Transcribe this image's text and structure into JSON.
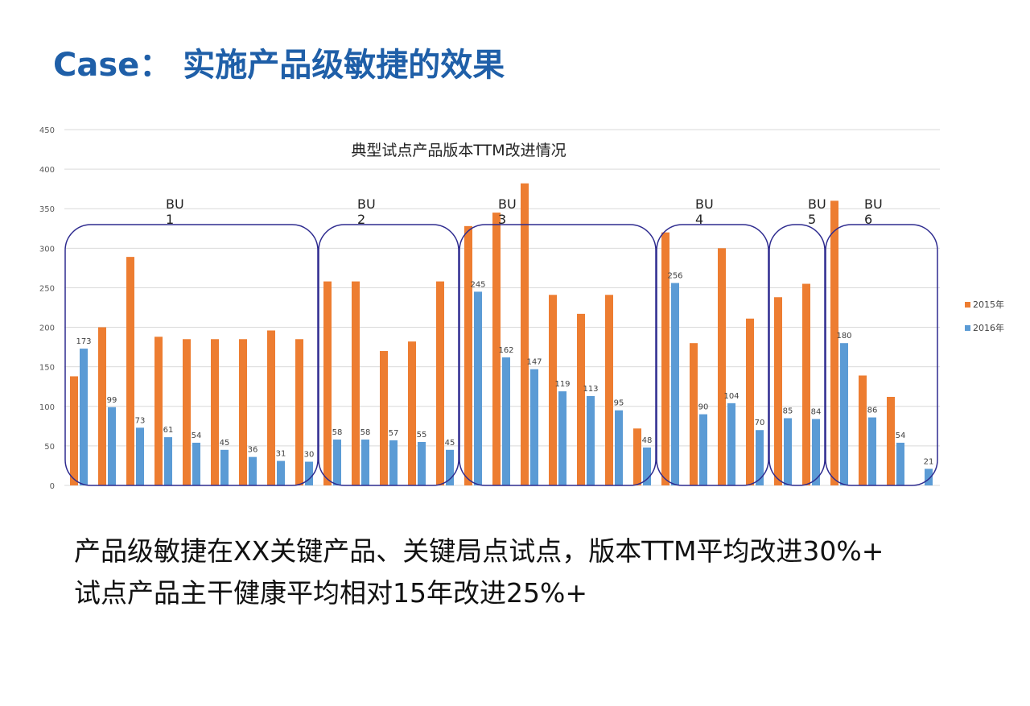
{
  "slide": {
    "title": "Case： 实施产品级敏捷的效果",
    "body_lines": [
      "产品级敏捷在XX关键产品、关键局点试点，版本TTM平均改进30%+",
      "试点产品主干健康平均相对15年改进25%+"
    ]
  },
  "colors": {
    "title": "#1f5fa8",
    "series_2015": "#ed7d31",
    "series_2016": "#5b9bd5",
    "group_outline": "#2e2b8f",
    "grid": "#d9d9d9"
  },
  "chart_data": {
    "type": "bar",
    "title": "典型试点产品版本TTM改进情况",
    "ylim": [
      0,
      450
    ],
    "yticks": [
      "0",
      "50",
      "100",
      "150",
      "200",
      "250",
      "300",
      "350",
      "400",
      "450"
    ],
    "grid": true,
    "legend_position": "right",
    "series": [
      {
        "name": "2015年",
        "values": [
          138,
          200,
          289,
          188,
          185,
          185,
          185,
          196,
          185,
          258,
          258,
          170,
          182,
          258,
          328,
          345,
          382,
          241,
          217,
          241,
          72,
          320,
          180,
          300,
          211,
          238,
          255,
          360,
          139,
          112,
          null
        ]
      },
      {
        "name": "2016年",
        "values": [
          173,
          99,
          73,
          61,
          54,
          45,
          36,
          31,
          30,
          58,
          58,
          57,
          55,
          45,
          245,
          162,
          147,
          119,
          113,
          95,
          48,
          256,
          90,
          104,
          70,
          85,
          84,
          180,
          86,
          54,
          21
        ]
      }
    ],
    "data_labels_2016": [
      "173",
      "99",
      "73",
      "61",
      "54",
      "45",
      "36",
      "31",
      "30",
      "58",
      "58",
      "57",
      "55",
      "45",
      "245",
      "162",
      "147",
      "119",
      "113",
      "95",
      "48",
      "256",
      "90",
      "104",
      "70",
      "85",
      "84",
      "180",
      "86",
      "54",
      "21"
    ],
    "groups": [
      {
        "label_line1": "BU",
        "label_line2": "1",
        "first": 0,
        "last": 8
      },
      {
        "label_line1": "BU",
        "label_line2": "2",
        "first": 9,
        "last": 13
      },
      {
        "label_line1": "BU",
        "label_line2": "3",
        "first": 14,
        "last": 20
      },
      {
        "label_line1": "BU",
        "label_line2": "4",
        "first": 21,
        "last": 24
      },
      {
        "label_line1": "BU",
        "label_line2": "5",
        "first": 25,
        "last": 26
      },
      {
        "label_line1": "BU",
        "label_line2": "6",
        "first": 27,
        "last": 30
      }
    ]
  }
}
